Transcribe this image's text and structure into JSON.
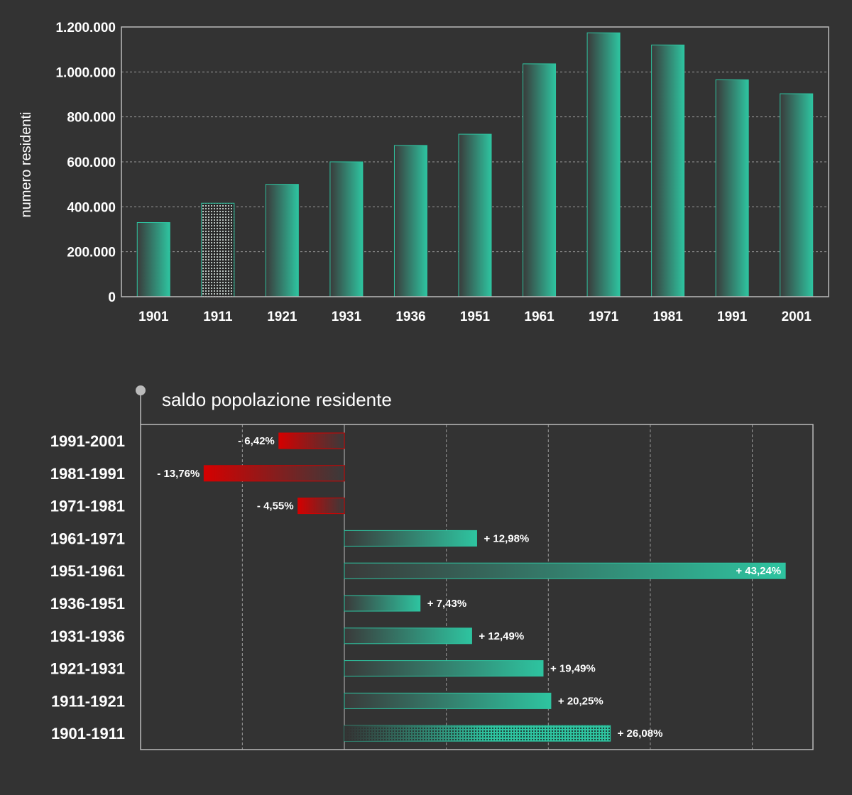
{
  "chart_data": [
    {
      "type": "bar",
      "title": "",
      "xlabel": "",
      "ylabel": "numero residenti",
      "categories": [
        "1901",
        "1911",
        "1921",
        "1931",
        "1936",
        "1951",
        "1961",
        "1971",
        "1981",
        "1991",
        "2001"
      ],
      "values": [
        330000,
        416000,
        500000,
        600000,
        673000,
        723000,
        1036000,
        1174000,
        1120000,
        965000,
        903000
      ],
      "highlight": "1911",
      "ylim": [
        0,
        1200000
      ],
      "yticks": [
        0,
        200000,
        400000,
        600000,
        800000,
        1000000,
        1200000
      ],
      "ytick_labels": [
        "0",
        "200.000",
        "400.000",
        "600.000",
        "800.000",
        "1.000.000",
        "1.200.000"
      ],
      "grid": true
    },
    {
      "type": "bar",
      "orientation": "horizontal",
      "title": "saldo popolazione residente",
      "categories": [
        "1991-2001",
        "1981-1991",
        "1971-1981",
        "1961-1971",
        "1951-1961",
        "1936-1951",
        "1931-1936",
        "1921-1931",
        "1911-1921",
        "1901-1911"
      ],
      "values": [
        -6.42,
        -13.76,
        -4.55,
        12.98,
        43.24,
        7.43,
        12.49,
        19.49,
        20.25,
        26.08
      ],
      "labels": [
        "- 6,42%",
        "- 13,76%",
        "- 4,55%",
        "+ 12,98%",
        "+ 43,24%",
        "+ 7,43%",
        "+ 12,49%",
        "+ 19,49%",
        "+ 20,25%",
        "+ 26,08%"
      ],
      "highlight": "1901-1911",
      "xlim": [
        -20,
        46
      ],
      "grid": true
    }
  ],
  "colors": {
    "background": "#333333",
    "positive": "#2ec4a0",
    "negative": "#d40000",
    "grid": "#9a9a9a",
    "axis": "#bbbbbb"
  }
}
